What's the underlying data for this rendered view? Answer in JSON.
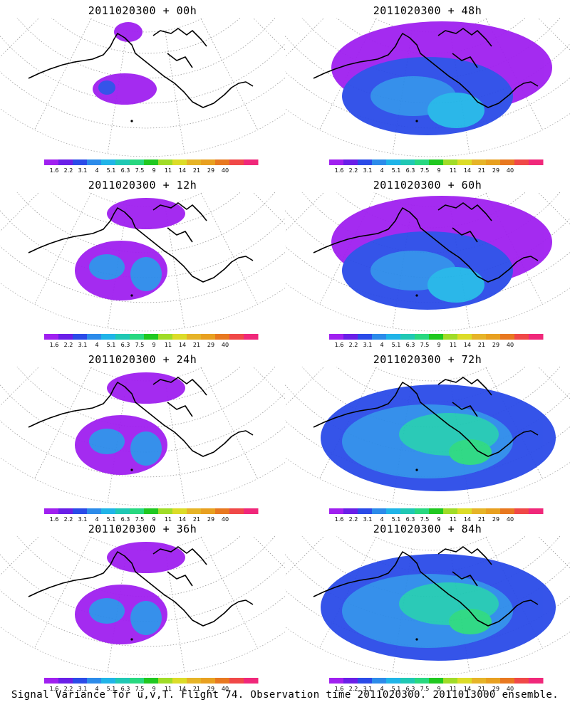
{
  "colorbar": {
    "labels": [
      "1.6",
      "2.2",
      "3.1",
      "4",
      "5.1",
      "6.3",
      "7.5",
      "9",
      "11",
      "14",
      "21",
      "29",
      "40"
    ],
    "colors": [
      "#a020f0",
      "#6a1fe8",
      "#2b4be8",
      "#2c8bea",
      "#20b4e8",
      "#20c8b4",
      "#28d880",
      "#20c820",
      "#a0dc28",
      "#dcdc28",
      "#e6b428",
      "#e8a020",
      "#e87820",
      "#f04848",
      "#f0287a"
    ]
  },
  "panels": [
    {
      "title": "2011020300 + 00h",
      "level": 0
    },
    {
      "title": "2011020300 + 48h",
      "level": 2
    },
    {
      "title": "2011020300 + 12h",
      "level": 1
    },
    {
      "title": "2011020300 + 60h",
      "level": 2
    },
    {
      "title": "2011020300 + 24h",
      "level": 1
    },
    {
      "title": "2011020300 + 72h",
      "level": 3
    },
    {
      "title": "2011020300 + 36h",
      "level": 1
    },
    {
      "title": "2011020300 + 84h",
      "level": 3
    }
  ],
  "footer": "Signal Variance for u,v,T. Flight 74. Observation time 2011020300. 2011013000 ensemble."
}
